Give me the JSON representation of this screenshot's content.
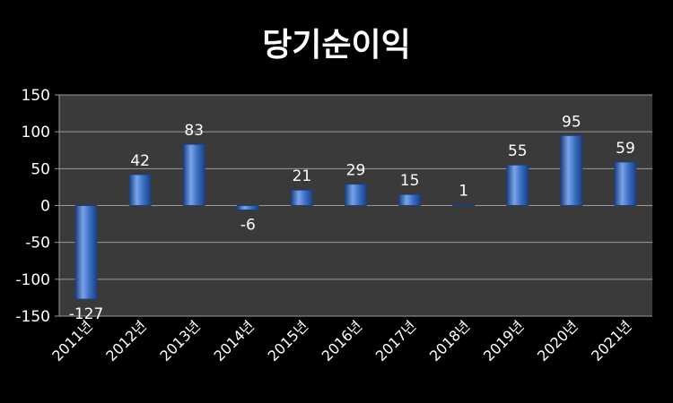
{
  "chart_data": {
    "type": "bar",
    "title": "당기순이익",
    "categories": [
      "2011년",
      "2012년",
      "2013년",
      "2014년",
      "2015년",
      "2016년",
      "2017년",
      "2018년",
      "2019년",
      "2020년",
      "2021년"
    ],
    "values": [
      -127,
      42,
      83,
      -6,
      21,
      29,
      15,
      1,
      55,
      95,
      59
    ],
    "data_labels": [
      "-127",
      "42",
      "83",
      "-6",
      "21",
      "29",
      "15",
      "1",
      "55",
      "95",
      "59"
    ],
    "ylim": [
      -150,
      150
    ],
    "yticks": [
      150,
      100,
      50,
      0,
      -50,
      -100,
      -150
    ],
    "ytick_labels": [
      "150",
      "100",
      "50",
      "0",
      "-50",
      "-100",
      "-150"
    ],
    "grid": true,
    "legend": "none",
    "colors": {
      "bar": "#3b6fc4",
      "bar_light": "#7aa4e8",
      "bar_dark": "#1d3f80",
      "plot_bg": "#3a3a3a",
      "grid": "#9a9a9a",
      "background": "#000000",
      "text": "#ffffff"
    }
  }
}
